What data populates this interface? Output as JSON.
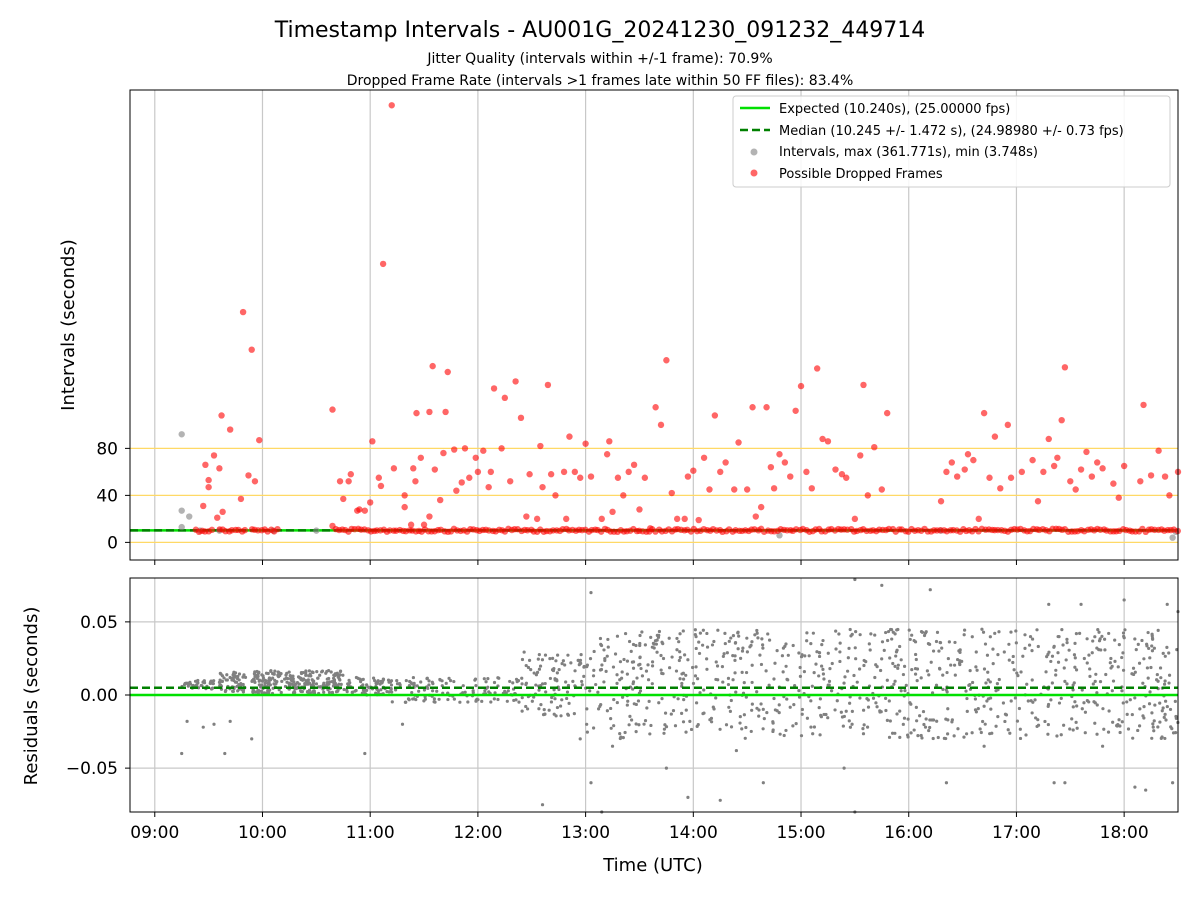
{
  "chart_data": [
    {
      "type": "scatter",
      "title": "Timestamp Intervals - AU001G_20241230_091232_449714",
      "subtitle_lines": [
        "Jitter Quality (intervals within +/-1 frame): 70.9%",
        "Dropped Frame Rate (intervals >1 frames late within 50 FF files): 83.4%"
      ],
      "xlabel": "",
      "ylabel": "Intervals (seconds)",
      "x_unit": "hours UTC",
      "xlim": [
        8.77,
        18.5
      ],
      "ylim": [
        -15,
        385
      ],
      "yticks": [
        0,
        40,
        80
      ],
      "ytick_labels": [
        "0",
        "40",
        "80"
      ],
      "reference_lines": [
        {
          "name": "Expected (10.240s), (25.00000 fps)",
          "y": 10.24,
          "color": "#00e000",
          "style": "solid"
        },
        {
          "name": "Median (10.245 +/- 1.472 s), (24.98980 +/- 0.73 fps)",
          "y": 10.245,
          "color": "#008000",
          "style": "dashed"
        }
      ],
      "threshold_lines": [
        0,
        40,
        80
      ],
      "threshold_color": "#ffd966",
      "grid_x": true,
      "grid_y": false,
      "legend_position": "top-right",
      "series": [
        {
          "name": "Intervals, max (361.771s), min (3.748s)",
          "color": "#808080",
          "points": [
            [
              9.25,
              13
            ],
            [
              9.25,
              27
            ],
            [
              9.25,
              92
            ],
            [
              9.32,
              22
            ],
            [
              9.42,
              10
            ],
            [
              9.6,
              10
            ],
            [
              10.1,
              10
            ],
            [
              10.5,
              10
            ],
            [
              14.8,
              6
            ],
            [
              16.3,
              10
            ],
            [
              18.45,
              4
            ],
            [
              18.48,
              9
            ]
          ]
        },
        {
          "name": "Possible Dropped Frames",
          "color": "#ff0000",
          "dense_band": {
            "y": 10.25,
            "segments": [
              [
                9.38,
                9.55
              ],
              [
                9.6,
                9.85
              ],
              [
                9.9,
                10.15
              ],
              [
                10.68,
                18.5
              ]
            ]
          },
          "points": [
            [
              9.45,
              31
            ],
            [
              9.47,
              66
            ],
            [
              9.5,
              53
            ],
            [
              9.5,
              47
            ],
            [
              9.55,
              74
            ],
            [
              9.58,
              21
            ],
            [
              9.6,
              63
            ],
            [
              9.62,
              108
            ],
            [
              9.63,
              26
            ],
            [
              9.7,
              96
            ],
            [
              9.8,
              37
            ],
            [
              9.82,
              196
            ],
            [
              9.87,
              57
            ],
            [
              9.9,
              164
            ],
            [
              9.93,
              52
            ],
            [
              9.97,
              87
            ],
            [
              10.65,
              113
            ],
            [
              10.65,
              14
            ],
            [
              10.72,
              52
            ],
            [
              10.75,
              37
            ],
            [
              10.8,
              52
            ],
            [
              10.82,
              58
            ],
            [
              10.88,
              27
            ],
            [
              10.9,
              28
            ],
            [
              10.95,
              27
            ],
            [
              11.0,
              34
            ],
            [
              11.02,
              86
            ],
            [
              11.08,
              55
            ],
            [
              11.1,
              48
            ],
            [
              11.12,
              237
            ],
            [
              11.2,
              372
            ],
            [
              11.22,
              63
            ],
            [
              11.32,
              30
            ],
            [
              11.32,
              40
            ],
            [
              11.38,
              15
            ],
            [
              11.4,
              63
            ],
            [
              11.42,
              52
            ],
            [
              11.43,
              110
            ],
            [
              11.47,
              72
            ],
            [
              11.5,
              15
            ],
            [
              11.55,
              22
            ],
            [
              11.55,
              111
            ],
            [
              11.58,
              150
            ],
            [
              11.6,
              62
            ],
            [
              11.65,
              36
            ],
            [
              11.68,
              76
            ],
            [
              11.7,
              111
            ],
            [
              11.72,
              145
            ],
            [
              11.78,
              79
            ],
            [
              11.8,
              44
            ],
            [
              11.85,
              51
            ],
            [
              11.88,
              80
            ],
            [
              11.92,
              55
            ],
            [
              11.98,
              72
            ],
            [
              12.0,
              60
            ],
            [
              12.05,
              78
            ],
            [
              12.1,
              47
            ],
            [
              12.12,
              60
            ],
            [
              12.15,
              131
            ],
            [
              12.22,
              80
            ],
            [
              12.25,
              123
            ],
            [
              12.3,
              52
            ],
            [
              12.35,
              137
            ],
            [
              12.4,
              106
            ],
            [
              12.45,
              22
            ],
            [
              12.48,
              58
            ],
            [
              12.55,
              20
            ],
            [
              12.58,
              82
            ],
            [
              12.6,
              47
            ],
            [
              12.65,
              134
            ],
            [
              12.68,
              58
            ],
            [
              12.72,
              40
            ],
            [
              12.8,
              60
            ],
            [
              12.82,
              20
            ],
            [
              12.85,
              90
            ],
            [
              12.9,
              60
            ],
            [
              12.95,
              55
            ],
            [
              13.0,
              84
            ],
            [
              13.05,
              56
            ],
            [
              13.15,
              20
            ],
            [
              13.2,
              75
            ],
            [
              13.22,
              86
            ],
            [
              13.25,
              26
            ],
            [
              13.3,
              55
            ],
            [
              13.35,
              40
            ],
            [
              13.4,
              60
            ],
            [
              13.45,
              66
            ],
            [
              13.5,
              28
            ],
            [
              13.55,
              55
            ],
            [
              13.6,
              12
            ],
            [
              13.65,
              115
            ],
            [
              13.7,
              100
            ],
            [
              13.75,
              155
            ],
            [
              13.8,
              42
            ],
            [
              13.85,
              20
            ],
            [
              13.92,
              20
            ],
            [
              13.95,
              56
            ],
            [
              14.0,
              61
            ],
            [
              14.05,
              19
            ],
            [
              14.1,
              72
            ],
            [
              14.15,
              45
            ],
            [
              14.2,
              108
            ],
            [
              14.25,
              60
            ],
            [
              14.3,
              68
            ],
            [
              14.38,
              45
            ],
            [
              14.42,
              85
            ],
            [
              14.5,
              45
            ],
            [
              14.55,
              115
            ],
            [
              14.58,
              22
            ],
            [
              14.63,
              30
            ],
            [
              14.68,
              115
            ],
            [
              14.72,
              64
            ],
            [
              14.75,
              46
            ],
            [
              14.8,
              75
            ],
            [
              14.85,
              68
            ],
            [
              14.9,
              56
            ],
            [
              14.95,
              112
            ],
            [
              15.0,
              133
            ],
            [
              15.05,
              60
            ],
            [
              15.1,
              46
            ],
            [
              15.15,
              148
            ],
            [
              15.2,
              88
            ],
            [
              15.25,
              86
            ],
            [
              15.32,
              62
            ],
            [
              15.38,
              58
            ],
            [
              15.42,
              55
            ],
            [
              15.5,
              20
            ],
            [
              15.55,
              74
            ],
            [
              15.58,
              134
            ],
            [
              15.62,
              40
            ],
            [
              15.68,
              81
            ],
            [
              15.75,
              45
            ],
            [
              15.8,
              110
            ],
            [
              16.3,
              35
            ],
            [
              16.35,
              60
            ],
            [
              16.4,
              68
            ],
            [
              16.45,
              56
            ],
            [
              16.52,
              62
            ],
            [
              16.55,
              75
            ],
            [
              16.6,
              70
            ],
            [
              16.65,
              20
            ],
            [
              16.7,
              110
            ],
            [
              16.75,
              55
            ],
            [
              16.8,
              90
            ],
            [
              16.85,
              46
            ],
            [
              16.92,
              100
            ],
            [
              16.95,
              55
            ],
            [
              17.05,
              60
            ],
            [
              17.15,
              70
            ],
            [
              17.2,
              35
            ],
            [
              17.25,
              60
            ],
            [
              17.3,
              88
            ],
            [
              17.35,
              65
            ],
            [
              17.38,
              72
            ],
            [
              17.42,
              104
            ],
            [
              17.45,
              149
            ],
            [
              17.5,
              52
            ],
            [
              17.55,
              45
            ],
            [
              17.6,
              62
            ],
            [
              17.65,
              77
            ],
            [
              17.7,
              56
            ],
            [
              17.75,
              68
            ],
            [
              17.8,
              63
            ],
            [
              17.9,
              50
            ],
            [
              17.95,
              38
            ],
            [
              18.0,
              65
            ],
            [
              18.15,
              52
            ],
            [
              18.18,
              117
            ],
            [
              18.25,
              57
            ],
            [
              18.32,
              78
            ],
            [
              18.38,
              56
            ],
            [
              18.42,
              40
            ],
            [
              18.5,
              60
            ]
          ]
        }
      ]
    },
    {
      "type": "scatter",
      "title": "",
      "xlabel": "Time (UTC)",
      "ylabel": "Residuals (seconds)",
      "xlim": [
        8.77,
        18.5
      ],
      "ylim": [
        -0.08,
        0.08
      ],
      "yticks": [
        -0.05,
        0.0,
        0.05
      ],
      "ytick_labels": [
        "−0.05",
        "0.00",
        "0.05"
      ],
      "xticks": [
        9,
        10,
        11,
        12,
        13,
        14,
        15,
        16,
        17,
        18
      ],
      "xtick_labels": [
        "09:00",
        "10:00",
        "11:00",
        "12:00",
        "13:00",
        "14:00",
        "15:00",
        "16:00",
        "17:00",
        "18:00"
      ],
      "reference_lines": [
        {
          "name": "Expected",
          "y": 0.0,
          "color": "#00e000",
          "style": "solid"
        },
        {
          "name": "Median",
          "y": 0.005,
          "color": "#008000",
          "style": "dashed"
        }
      ],
      "grid_x": true,
      "grid_y": true,
      "series": [
        {
          "name": "",
          "color": "#808080",
          "clusters": [
            {
              "x": [
                9.25,
                9.55
              ],
              "y": [
                0.004,
                0.01
              ],
              "n": 40
            },
            {
              "x": [
                9.6,
                9.85
              ],
              "y": [
                0.002,
                0.016
              ],
              "n": 60
            },
            {
              "x": [
                9.9,
                10.75
              ],
              "y": [
                0.001,
                0.017
              ],
              "n": 260
            },
            {
              "x": [
                10.75,
                11.2
              ],
              "y": [
                0.0,
                0.012
              ],
              "n": 80
            },
            {
              "x": [
                11.2,
                12.4
              ],
              "y": [
                -0.005,
                0.012
              ],
              "n": 120
            },
            {
              "x": [
                12.4,
                13.0
              ],
              "y": [
                -0.015,
                0.03
              ],
              "n": 100
            },
            {
              "x": [
                13.0,
                18.5
              ],
              "y": [
                -0.03,
                0.045
              ],
              "n": 900
            }
          ],
          "outliers": [
            [
              9.25,
              -0.04
            ],
            [
              9.3,
              -0.018
            ],
            [
              9.45,
              -0.022
            ],
            [
              9.55,
              -0.02
            ],
            [
              9.65,
              -0.04
            ],
            [
              9.7,
              -0.018
            ],
            [
              9.9,
              -0.03
            ],
            [
              10.95,
              -0.04
            ],
            [
              11.3,
              -0.02
            ],
            [
              12.6,
              -0.075
            ],
            [
              13.05,
              -0.06
            ],
            [
              13.05,
              0.07
            ],
            [
              13.15,
              -0.08
            ],
            [
              13.75,
              -0.05
            ],
            [
              13.95,
              -0.07
            ],
            [
              14.25,
              -0.072
            ],
            [
              14.65,
              -0.06
            ],
            [
              15.4,
              -0.05
            ],
            [
              15.5,
              0.079
            ],
            [
              15.75,
              0.075
            ],
            [
              15.5,
              -0.08
            ],
            [
              16.2,
              0.072
            ],
            [
              16.35,
              -0.06
            ],
            [
              17.3,
              0.062
            ],
            [
              17.35,
              -0.06
            ],
            [
              17.45,
              -0.06
            ],
            [
              17.6,
              0.062
            ],
            [
              18.0,
              0.065
            ],
            [
              18.1,
              -0.063
            ],
            [
              18.2,
              -0.065
            ],
            [
              18.4,
              0.062
            ],
            [
              18.45,
              -0.06
            ],
            [
              18.5,
              0.057
            ],
            [
              12.95,
              -0.03
            ],
            [
              13.25,
              -0.035
            ],
            [
              14.4,
              -0.038
            ],
            [
              16.7,
              -0.035
            ],
            [
              17.8,
              -0.035
            ]
          ]
        }
      ]
    }
  ]
}
